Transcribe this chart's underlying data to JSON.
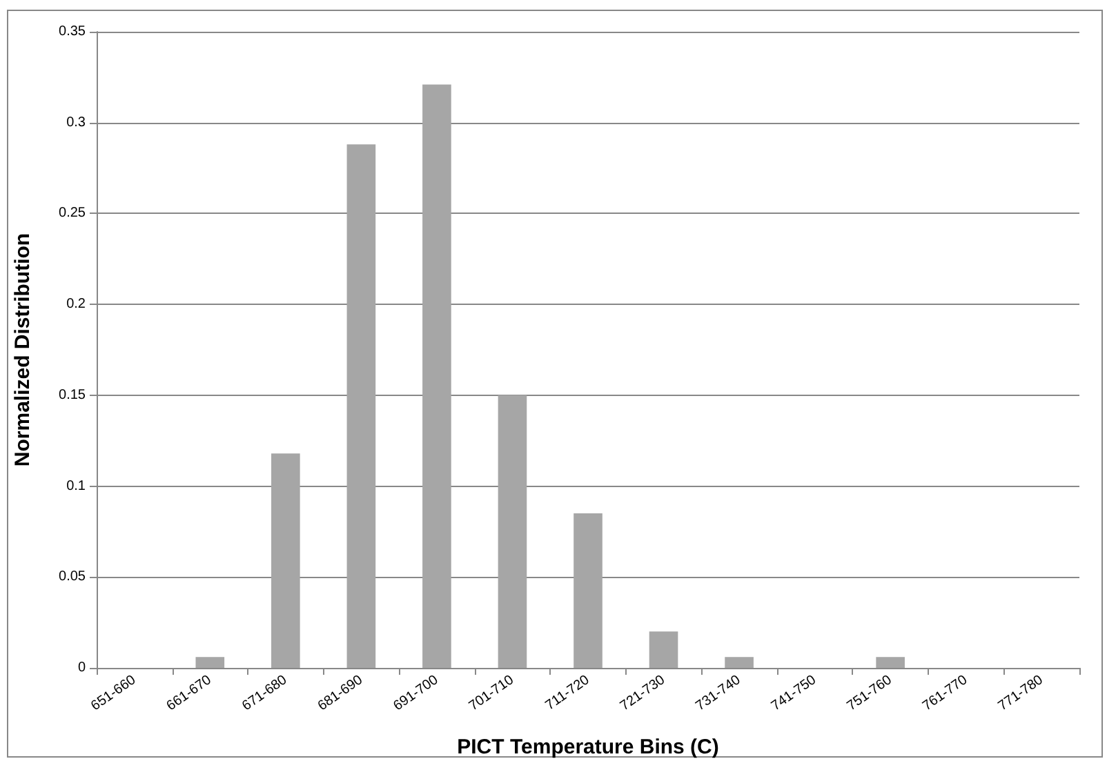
{
  "chart_data": {
    "type": "bar",
    "xlabel": "PICT Temperature Bins (C)",
    "ylabel": "Normalized Distribution",
    "categories": [
      "651-660",
      "661-670",
      "671-680",
      "681-690",
      "691-700",
      "701-710",
      "711-720",
      "721-730",
      "731-740",
      "741-750",
      "751-760",
      "761-770",
      "771-780"
    ],
    "values": [
      0,
      0.006,
      0.118,
      0.288,
      0.321,
      0.15,
      0.085,
      0.02,
      0.006,
      0,
      0.006,
      0,
      0
    ],
    "color": "#a6a6a6",
    "ylim": [
      0,
      0.35
    ],
    "yticks": [
      0,
      0.05,
      0.1,
      0.15,
      0.2,
      0.25,
      0.3,
      0.35
    ],
    "grid": "y"
  }
}
